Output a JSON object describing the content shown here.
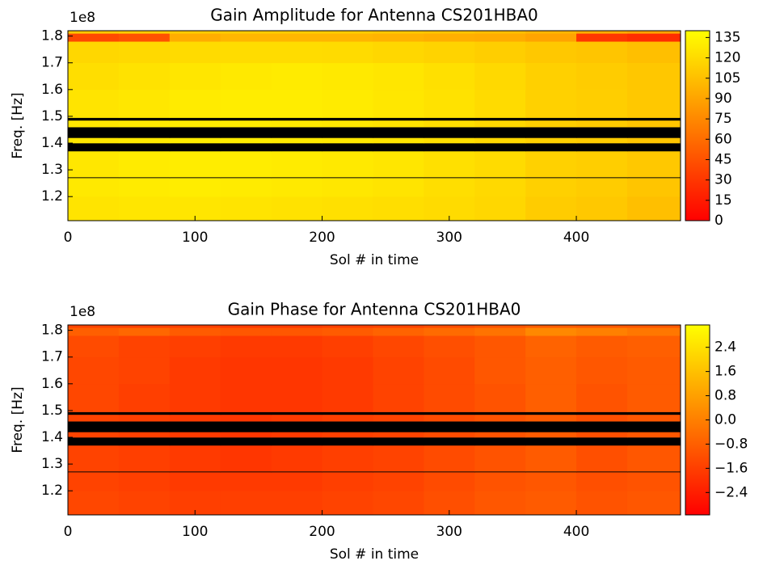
{
  "chart_data": [
    {
      "type": "heatmap",
      "title": "Gain Amplitude for Antenna CS201HBA0",
      "x_label": "Sol # in time",
      "y_label": "Freq. [Hz]",
      "y_offset_text": "1e8",
      "colormap": "autumn",
      "null_color": "#000000",
      "xlim": [
        0,
        482
      ],
      "xticks": [
        0,
        100,
        200,
        300,
        400
      ],
      "ylim": [
        111000000,
        182000000
      ],
      "yticks": [
        {
          "value": 120000000,
          "label": "1.2"
        },
        {
          "value": 130000000,
          "label": "1.3"
        },
        {
          "value": 140000000,
          "label": "1.4"
        },
        {
          "value": 150000000,
          "label": "1.5"
        },
        {
          "value": 160000000,
          "label": "1.6"
        },
        {
          "value": 170000000,
          "label": "1.7"
        },
        {
          "value": 180000000,
          "label": "1.8"
        }
      ],
      "x_edges": [
        0,
        40,
        80,
        120,
        160,
        200,
        240,
        280,
        320,
        360,
        400,
        440,
        482
      ],
      "y_edges": [
        111000000,
        120000000,
        127000000,
        127300000,
        137000000,
        140000000,
        142000000,
        146000000,
        148500000,
        149500000,
        160000000,
        170000000,
        178000000,
        181000000,
        182000000
      ],
      "z": [
        [
          125,
          126,
          126,
          125,
          124,
          123,
          122,
          120,
          118,
          112,
          110,
          105
        ],
        [
          128,
          129,
          130,
          129,
          128,
          127,
          125,
          122,
          119,
          114,
          112,
          108
        ],
        [
          null,
          null,
          null,
          null,
          null,
          null,
          null,
          null,
          null,
          null,
          null,
          null
        ],
        [
          127,
          129,
          130,
          130,
          129,
          128,
          126,
          123,
          120,
          115,
          113,
          110
        ],
        [
          null,
          null,
          null,
          null,
          null,
          null,
          null,
          null,
          null,
          null,
          null,
          null
        ],
        [
          126,
          128,
          129,
          129,
          128,
          127,
          125,
          122,
          118,
          114,
          112,
          108
        ],
        [
          null,
          null,
          null,
          null,
          null,
          null,
          null,
          null,
          null,
          null,
          null,
          null
        ],
        [
          126,
          128,
          129,
          129,
          128,
          127,
          125,
          122,
          118,
          114,
          112,
          108
        ],
        [
          null,
          null,
          null,
          null,
          null,
          null,
          null,
          null,
          null,
          null,
          null,
          null
        ],
        [
          125,
          127,
          129,
          130,
          130,
          129,
          127,
          124,
          120,
          115,
          113,
          110
        ],
        [
          122,
          124,
          126,
          128,
          129,
          128,
          126,
          123,
          119,
          114,
          112,
          109
        ],
        [
          118,
          119,
          120,
          121,
          121,
          120,
          118,
          116,
          113,
          110,
          108,
          105
        ],
        [
          40,
          45,
          95,
          100,
          100,
          100,
          98,
          96,
          95,
          90,
          30,
          25
        ],
        [
          110,
          112,
          112,
          112,
          112,
          112,
          110,
          108,
          105,
          100,
          95,
          90
        ]
      ],
      "clim": [
        0,
        140
      ],
      "colorbar_ticks": [
        0,
        15,
        30,
        45,
        60,
        75,
        90,
        105,
        120,
        135
      ]
    },
    {
      "type": "heatmap",
      "title": "Gain Phase for Antenna CS201HBA0",
      "x_label": "Sol # in time",
      "y_label": "Freq. [Hz]",
      "y_offset_text": "1e8",
      "colormap": "autumn",
      "null_color": "#000000",
      "xlim": [
        0,
        482
      ],
      "xticks": [
        0,
        100,
        200,
        300,
        400
      ],
      "ylim": [
        111000000,
        182000000
      ],
      "yticks": [
        {
          "value": 120000000,
          "label": "1.2"
        },
        {
          "value": 130000000,
          "label": "1.3"
        },
        {
          "value": 140000000,
          "label": "1.4"
        },
        {
          "value": 150000000,
          "label": "1.5"
        },
        {
          "value": 160000000,
          "label": "1.6"
        },
        {
          "value": 170000000,
          "label": "1.7"
        },
        {
          "value": 180000000,
          "label": "1.8"
        }
      ],
      "x_edges": [
        0,
        40,
        80,
        120,
        160,
        200,
        240,
        280,
        320,
        360,
        400,
        440,
        482
      ],
      "y_edges": [
        111000000,
        120000000,
        127000000,
        127300000,
        137000000,
        140000000,
        142000000,
        146000000,
        148500000,
        149500000,
        160000000,
        170000000,
        178000000,
        181000000,
        182000000
      ],
      "z": [
        [
          -1.4,
          -1.5,
          -1.6,
          -1.6,
          -1.6,
          -1.5,
          -1.4,
          -1.2,
          -1.0,
          -0.9,
          -1.1,
          -1.0
        ],
        [
          -1.5,
          -1.6,
          -1.7,
          -1.7,
          -1.7,
          -1.6,
          -1.5,
          -1.3,
          -1.1,
          -1.0,
          -1.2,
          -1.1
        ],
        [
          null,
          null,
          null,
          null,
          null,
          null,
          null,
          null,
          null,
          null,
          null,
          null
        ],
        [
          -1.5,
          -1.6,
          -1.7,
          -1.8,
          -1.7,
          -1.6,
          -1.5,
          -1.3,
          -1.1,
          -0.9,
          -1.2,
          -1.0
        ],
        [
          null,
          null,
          null,
          null,
          null,
          null,
          null,
          null,
          null,
          null,
          null,
          null
        ],
        [
          -1.5,
          -1.6,
          -1.7,
          -1.8,
          -1.7,
          -1.6,
          -1.5,
          -1.3,
          -1.1,
          -0.9,
          -1.2,
          -1.0
        ],
        [
          null,
          null,
          null,
          null,
          null,
          null,
          null,
          null,
          null,
          null,
          null,
          null
        ],
        [
          -1.5,
          -1.6,
          -1.7,
          -1.8,
          -1.7,
          -1.6,
          -1.5,
          -1.3,
          -1.1,
          -0.9,
          -1.2,
          -1.0
        ],
        [
          null,
          null,
          null,
          null,
          null,
          null,
          null,
          null,
          null,
          null,
          null,
          null
        ],
        [
          -1.4,
          -1.6,
          -1.7,
          -1.8,
          -1.8,
          -1.7,
          -1.5,
          -1.3,
          -1.1,
          -0.8,
          -1.1,
          -0.9
        ],
        [
          -1.4,
          -1.5,
          -1.7,
          -1.8,
          -1.8,
          -1.7,
          -1.5,
          -1.3,
          -1.0,
          -0.8,
          -1.0,
          -0.9
        ],
        [
          -1.3,
          -1.5,
          -1.6,
          -1.7,
          -1.7,
          -1.6,
          -1.4,
          -1.2,
          -1.0,
          -0.7,
          -0.9,
          -0.8
        ],
        [
          -0.8,
          -0.6,
          -0.9,
          -1.0,
          -1.0,
          -0.9,
          -0.7,
          -0.5,
          -0.3,
          0.2,
          0.0,
          -0.2
        ],
        [
          -1.5,
          -1.6,
          -1.6,
          -1.7,
          -1.7,
          -1.6,
          -1.5,
          -1.3,
          -1.1,
          -0.9,
          -1.0,
          -1.0
        ]
      ],
      "clim": [
        -3.14,
        3.14
      ],
      "colorbar_ticks": [
        {
          "value": -2.4,
          "label": "−2.4"
        },
        {
          "value": -1.6,
          "label": "−1.6"
        },
        {
          "value": -0.8,
          "label": "−0.8"
        },
        {
          "value": 0,
          "label": "0.0"
        },
        0.8,
        1.6,
        2.4
      ]
    }
  ]
}
